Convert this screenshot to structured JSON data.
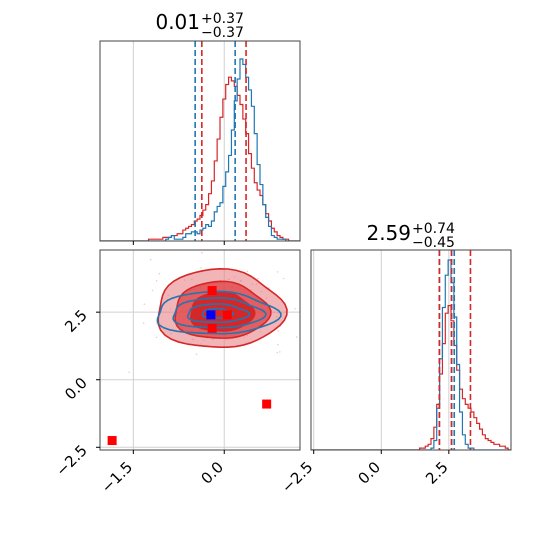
{
  "chart_data": {
    "type": "corner",
    "grid": true,
    "colors": {
      "blue": "#1f77b4",
      "red": "#d62728"
    },
    "parameters": [
      {
        "title": {
          "value": "0.01",
          "plus": "+0.37",
          "minus": "−0.37"
        },
        "range": [
          -2.05,
          1.25
        ],
        "ticks": [
          -1.5,
          0.0
        ],
        "tick_labels": [
          "−1.5",
          "0.0"
        ],
        "quantiles_blue": [
          -0.48,
          0.18
        ],
        "quantiles_red": [
          -0.37,
          0.36
        ],
        "hist_blue": [
          0,
          0,
          0,
          0,
          0,
          0,
          0,
          0,
          0,
          0,
          0,
          0,
          0,
          0,
          0,
          0,
          0,
          0,
          0,
          0,
          0,
          0,
          0,
          1,
          2,
          3,
          1,
          1,
          1,
          2,
          4,
          4,
          5,
          5,
          4,
          6,
          7,
          9,
          8,
          11,
          16,
          19,
          21,
          30,
          38,
          47,
          61,
          77,
          89,
          100,
          97,
          90,
          83,
          74,
          59,
          42,
          31,
          20,
          13,
          8,
          3,
          2,
          1,
          1,
          1,
          0,
          0,
          0,
          0,
          0
        ],
        "hist_red": [
          0,
          0,
          0,
          0,
          0,
          0,
          0,
          0,
          0,
          0,
          0,
          0,
          0,
          0,
          0,
          0,
          0,
          1,
          1,
          1,
          1,
          1,
          2,
          2,
          2,
          3,
          3,
          4,
          4,
          6,
          7,
          8,
          9,
          11,
          12,
          14,
          17,
          20,
          26,
          33,
          44,
          56,
          68,
          78,
          86,
          90,
          88,
          85,
          80,
          75,
          67,
          59,
          48,
          40,
          32,
          28,
          25,
          20,
          15,
          11,
          7,
          5,
          3,
          2,
          1,
          1,
          0,
          0,
          0,
          0
        ]
      },
      {
        "title": {
          "value": "2.59",
          "plus": "+0.74",
          "minus": "−0.45"
        },
        "range": [
          -2.6,
          4.8
        ],
        "ticks": [
          -2.5,
          0.0,
          2.5
        ],
        "tick_labels": [
          "−2.5",
          "0.0",
          "2.5"
        ],
        "quantiles_blue": [
          2.15,
          2.6,
          2.7
        ],
        "quantiles_red": [
          2.15,
          2.6,
          3.3
        ],
        "hist_blue": [
          0,
          0,
          0,
          0,
          0,
          0,
          0,
          0,
          0,
          0,
          0,
          0,
          0,
          0,
          0,
          0,
          0,
          0,
          0,
          0,
          0,
          0,
          0,
          0,
          0,
          0,
          0,
          0,
          0,
          0,
          0,
          0,
          0,
          0,
          0,
          0,
          0,
          0,
          0,
          0,
          0,
          0,
          1,
          5,
          22,
          48,
          75,
          92,
          100,
          88,
          70,
          45,
          20,
          8,
          3,
          1,
          1,
          0,
          0,
          0,
          0,
          0,
          0,
          0,
          0,
          0,
          0,
          0,
          0,
          0
        ],
        "hist_red": [
          0,
          0,
          0,
          0,
          0,
          0,
          0,
          0,
          0,
          0,
          0,
          0,
          0,
          0,
          0,
          0,
          0,
          0,
          0,
          0,
          0,
          0,
          0,
          0,
          0,
          0,
          0,
          0,
          0,
          0,
          0,
          0,
          0,
          0,
          0,
          0,
          0,
          0,
          1,
          1,
          2,
          3,
          6,
          12,
          24,
          40,
          56,
          72,
          76,
          68,
          55,
          42,
          32,
          27,
          24,
          22,
          20,
          17,
          14,
          11,
          8,
          6,
          5,
          4,
          3,
          3,
          2,
          2,
          1,
          0
        ]
      }
    ],
    "scatter": {
      "xlim": [
        -2.05,
        1.25
      ],
      "ylim": [
        -2.6,
        4.8
      ],
      "yticks": [
        -2.5,
        0.0,
        2.5
      ],
      "ytick_labels": [
        "−2.5",
        "0.0",
        "2.5"
      ],
      "red_markers": [
        [
          -1.85,
          -2.25
        ],
        [
          -0.2,
          3.3
        ],
        [
          0.7,
          -0.9
        ],
        [
          -0.2,
          1.9
        ],
        [
          0.05,
          2.4
        ]
      ],
      "blue_markers": [
        [
          -0.22,
          2.4
        ]
      ],
      "red_contours": [
        {
          "cx": -0.08,
          "cy": 2.6,
          "rx": 1.05,
          "ry": 1.45,
          "fill_opacity": 0.55
        },
        {
          "cx": -0.06,
          "cy": 2.55,
          "rx": 0.78,
          "ry": 1.05,
          "fill_opacity": 0.8
        },
        {
          "cx": -0.05,
          "cy": 2.5,
          "rx": 0.52,
          "ry": 0.72,
          "fill_opacity": 1.0
        },
        {
          "cx": -0.05,
          "cy": 2.45,
          "rx": 0.28,
          "ry": 0.4,
          "fill_opacity": 1.0
        }
      ],
      "blue_contours": [
        {
          "cx": -0.14,
          "cy": 2.45,
          "rx": 1.0,
          "ry": 0.78
        },
        {
          "cx": -0.12,
          "cy": 2.45,
          "rx": 0.75,
          "ry": 0.55
        },
        {
          "cx": -0.12,
          "cy": 2.45,
          "rx": 0.5,
          "ry": 0.34
        },
        {
          "cx": -0.12,
          "cy": 2.45,
          "rx": 0.25,
          "ry": 0.17
        }
      ]
    }
  }
}
